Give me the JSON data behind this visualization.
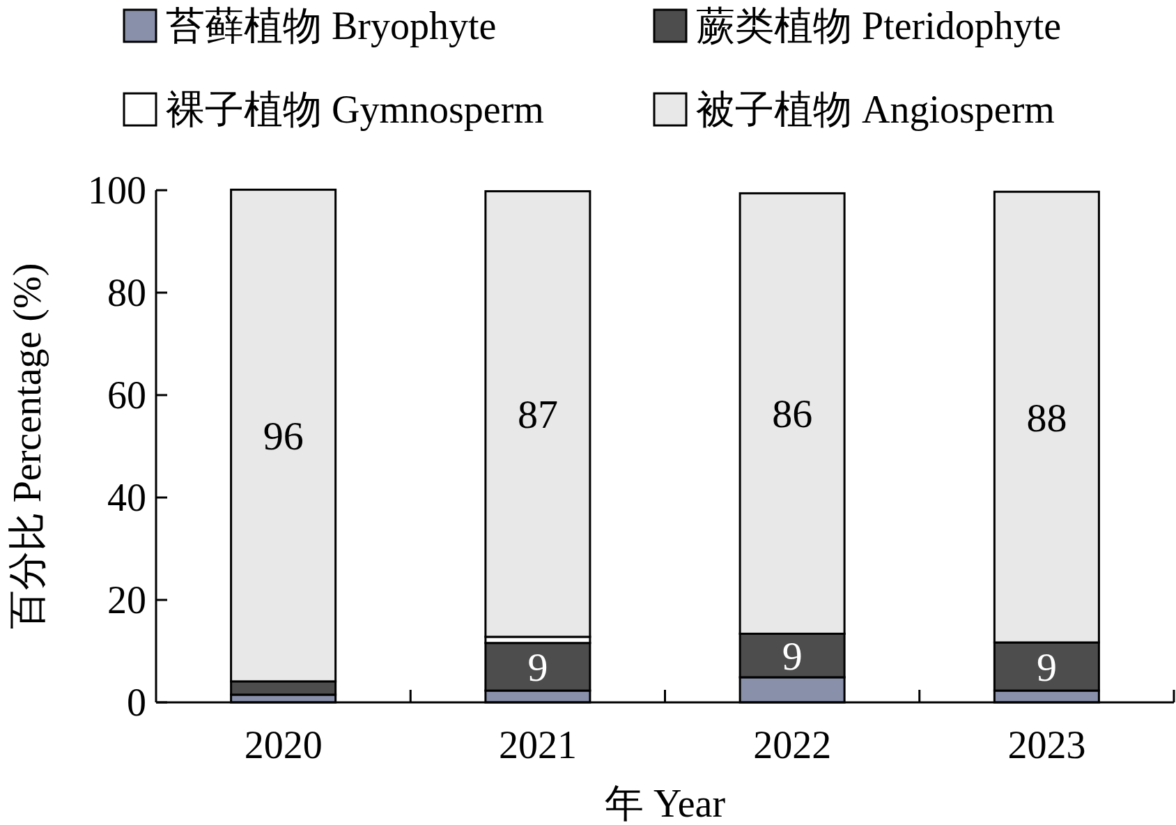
{
  "chart_data": {
    "type": "bar",
    "stacked": true,
    "xlabel": "年 Year",
    "ylabel": "百分比 Percentage (%)",
    "categories": [
      "2020",
      "2021",
      "2022",
      "2023"
    ],
    "ylim": [
      0,
      100
    ],
    "yticks": [
      0,
      20,
      40,
      60,
      80,
      100
    ],
    "grid": false,
    "legend": "top",
    "series": [
      {
        "name": "苔藓植物 Bryophyte",
        "color": "#8990aa",
        "values": [
          1.5,
          2.3,
          4.9,
          2.3
        ]
      },
      {
        "name": "蕨类植物 Pteridophyte",
        "color": "#4d4d4d",
        "values": [
          2.6,
          9.3,
          8.5,
          9.4
        ],
        "value_labels": [
          null,
          "9",
          "9",
          "9"
        ]
      },
      {
        "name": "裸子植物 Gymnosperm",
        "color": "#ffffff",
        "values": [
          null,
          1.2,
          null,
          null
        ]
      },
      {
        "name": "被子植物 Angiosperm",
        "color": "#e8e8e8",
        "values": [
          96,
          87,
          86,
          88
        ],
        "value_labels": [
          "96",
          "87",
          "86",
          "88"
        ]
      }
    ]
  }
}
